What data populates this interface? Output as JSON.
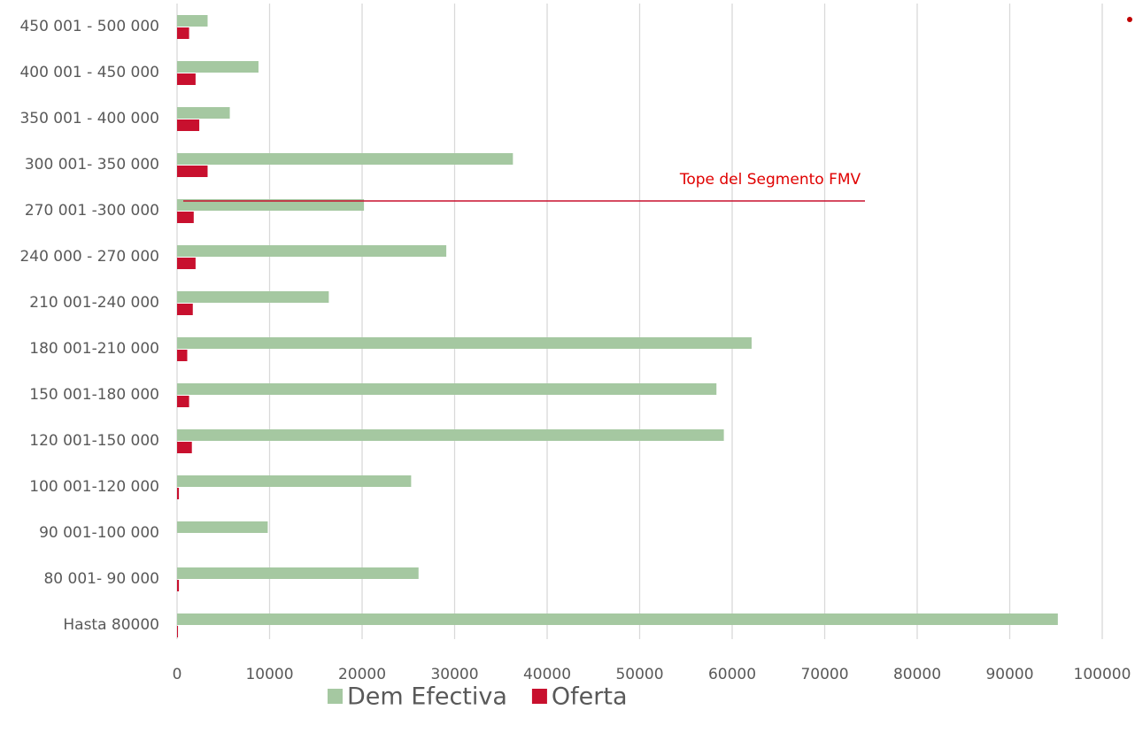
{
  "chart_data": {
    "type": "hbar",
    "categories": [
      "Hasta 80000",
      "80 001- 90 000",
      "90 001-100 000",
      "100 001-120 000",
      "120 001-150 000",
      "150 001-180 000",
      "180 001-210 000",
      "210 001-240 000",
      "240 000 - 270 000",
      "270 001 -300 000",
      "300 001- 350 000",
      "350 001 - 400 000",
      "400 001 - 450 000",
      "450 001 - 500 000"
    ],
    "series": [
      {
        "name": "Dem Efectiva",
        "color": "#a5c8a1",
        "values": [
          95200,
          26100,
          9800,
          25300,
          59100,
          58300,
          62100,
          16400,
          29100,
          20200,
          36300,
          5700,
          8800,
          3300
        ]
      },
      {
        "name": "Oferta",
        "color": "#c8102e",
        "values": [
          100,
          200,
          0,
          200,
          1600,
          1300,
          1100,
          1700,
          2000,
          1800,
          3300,
          2400,
          2000,
          1300
        ]
      }
    ],
    "xlim": [
      0,
      100000
    ],
    "xticks": [
      0,
      10000,
      20000,
      30000,
      40000,
      50000,
      60000,
      70000,
      80000,
      90000,
      100000
    ],
    "grid": true,
    "legend": "bottom",
    "annotation": "Tope del Segmento FMV"
  }
}
